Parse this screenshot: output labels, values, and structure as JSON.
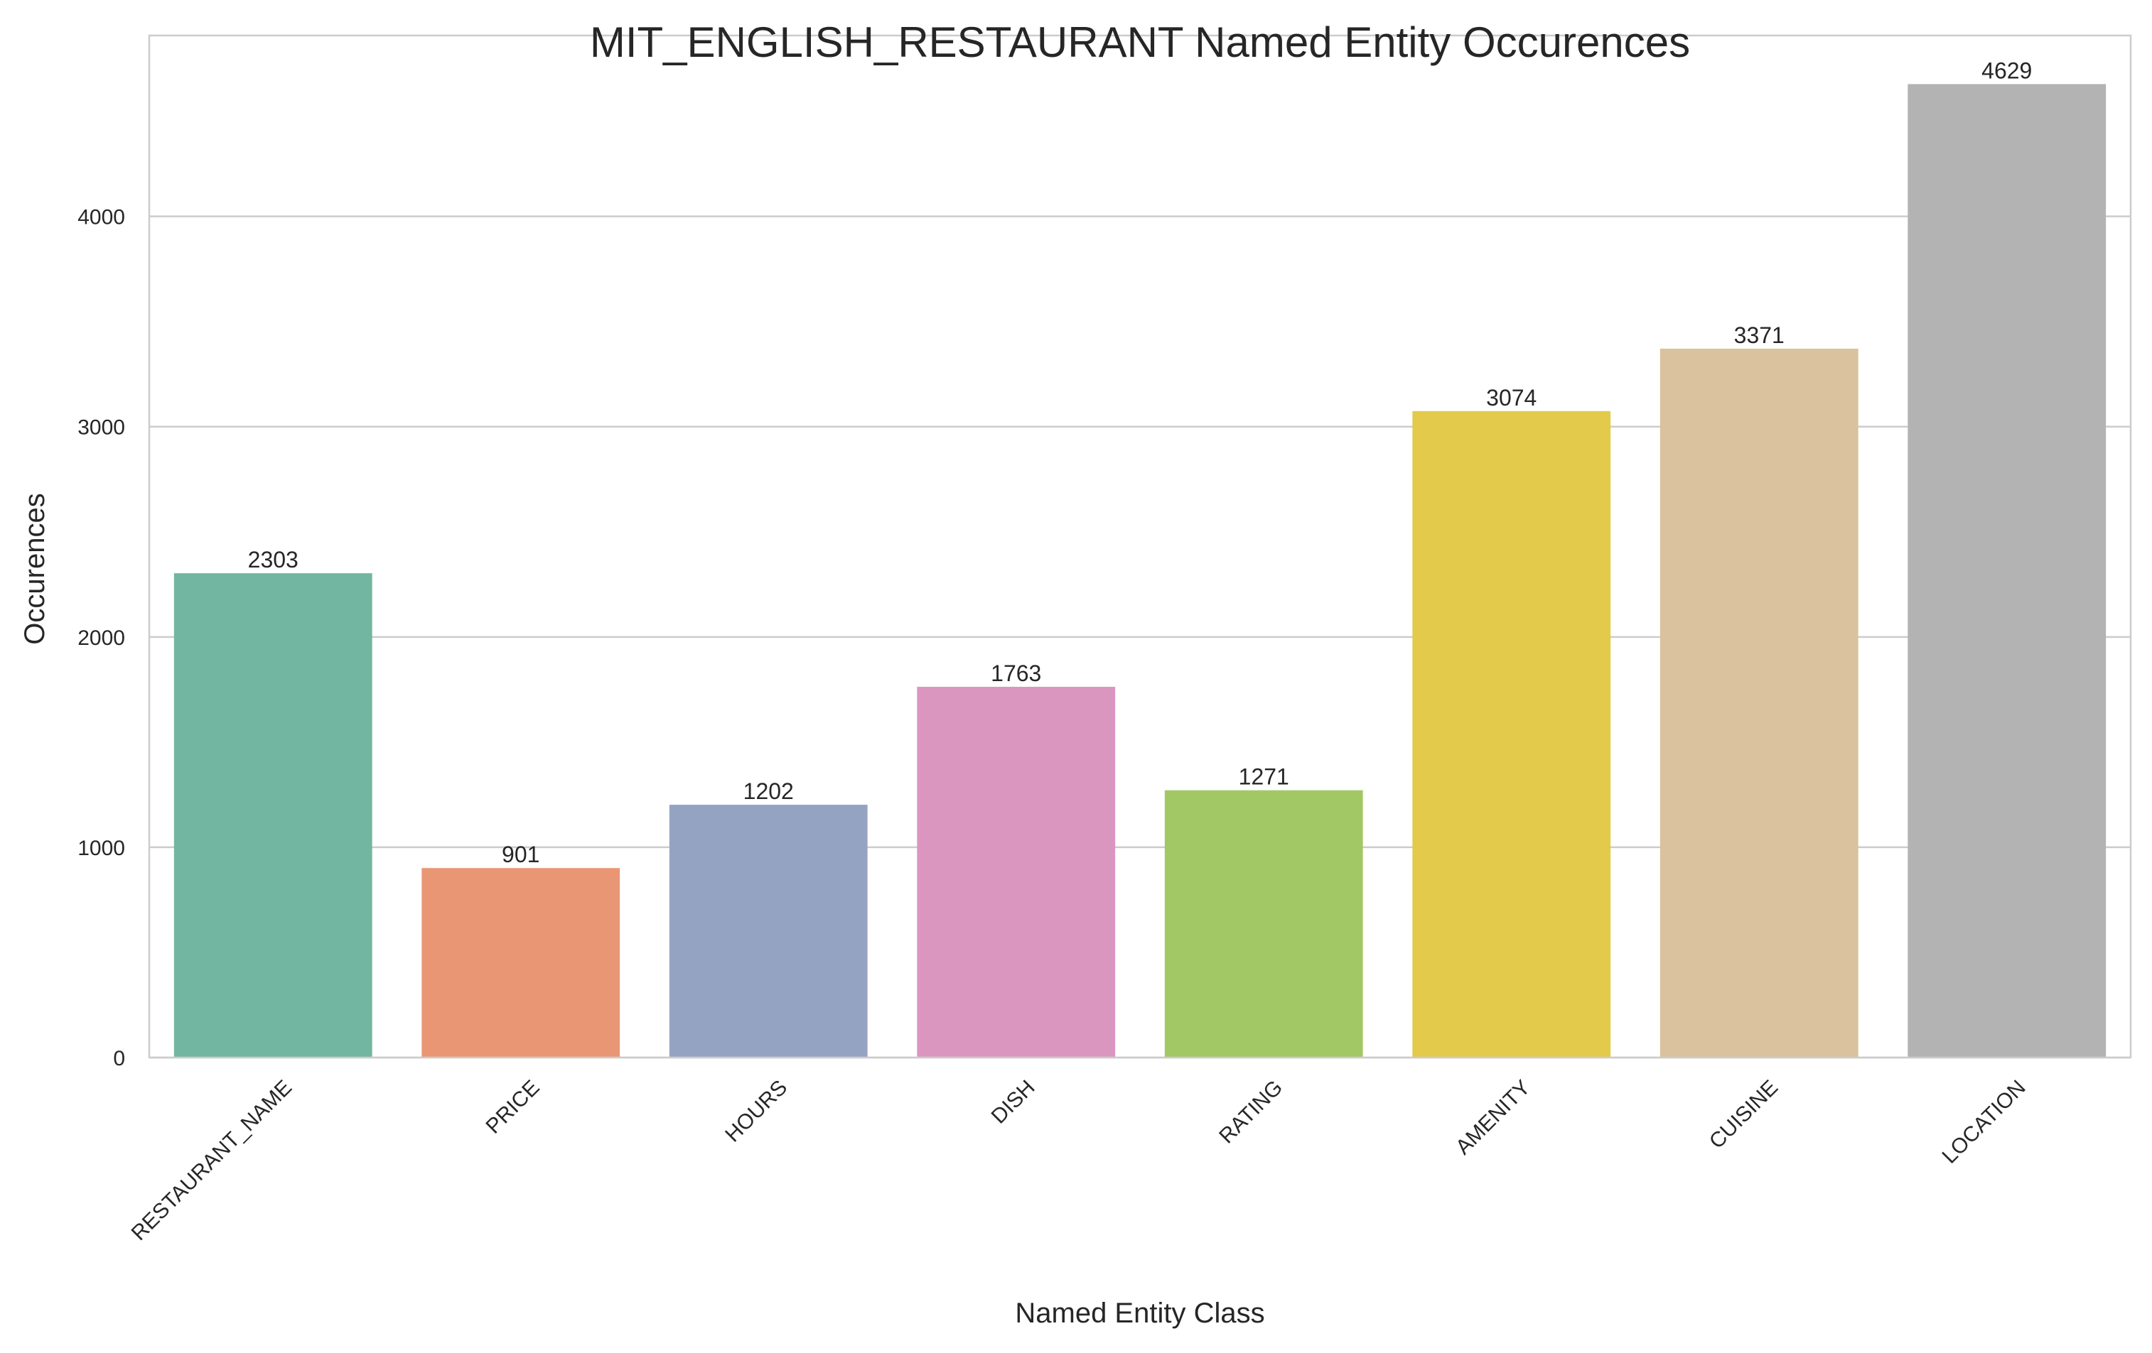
{
  "chart_data": {
    "type": "bar",
    "title": "MIT_ENGLISH_RESTAURANT Named Entity Occurences",
    "xlabel": "Named Entity Class",
    "ylabel": "Occurences",
    "categories": [
      "RESTAURANT_NAME",
      "PRICE",
      "HOURS",
      "DISH",
      "RATING",
      "AMENITY",
      "CUISINE",
      "LOCATION"
    ],
    "values": [
      2303,
      901,
      1202,
      1763,
      1271,
      3074,
      3371,
      4629
    ],
    "colors": [
      "#72b6a1",
      "#e99675",
      "#95a3c3",
      "#db96c0",
      "#a2c865",
      "#e3ca4a",
      "#d9c29d",
      "#b3b3b3"
    ],
    "ylim": [
      0,
      4860
    ],
    "yticks": [
      0,
      1000,
      2000,
      3000,
      4000
    ],
    "grid": "horizontal",
    "legend": "none"
  }
}
